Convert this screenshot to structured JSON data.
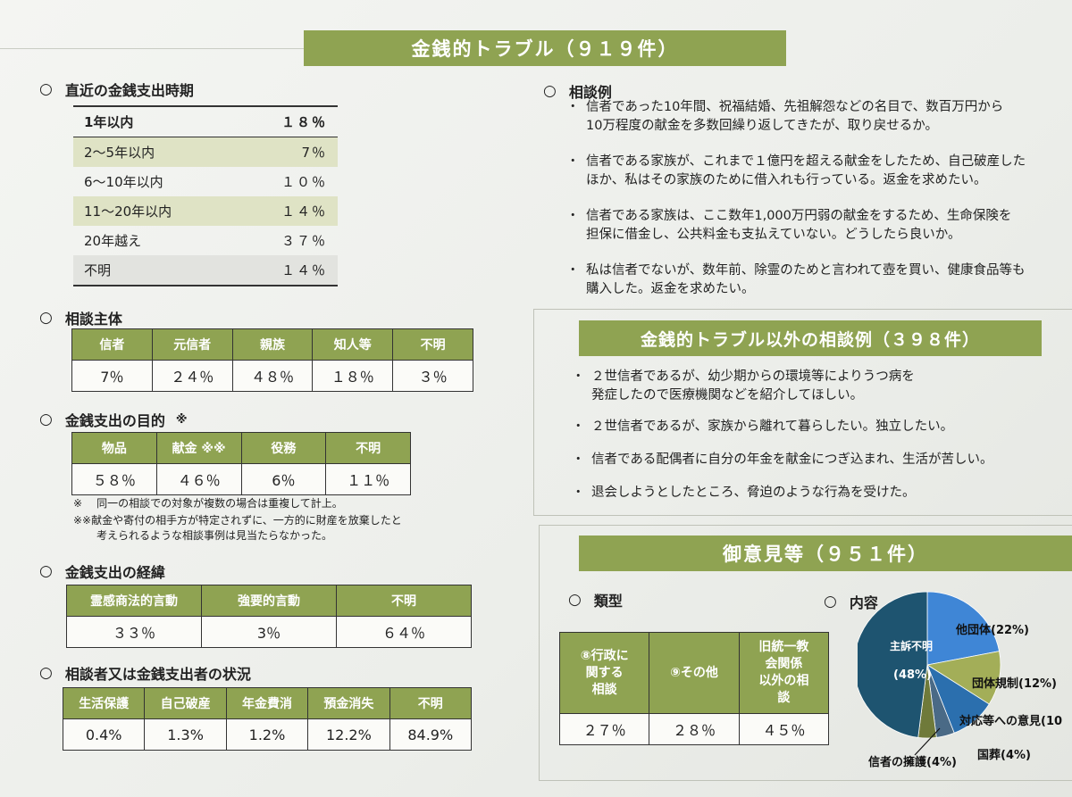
{
  "main_title": "金銭的トラブル（９１９件）",
  "recent": {
    "heading": "直近の金銭支出時期",
    "rows": [
      {
        "label": "1年以内",
        "value": "１８％"
      },
      {
        "label": "2～5年以内",
        "value": "7％"
      },
      {
        "label": "6～10年以内",
        "value": "１０％"
      },
      {
        "label": "11～20年以内",
        "value": "１４％"
      },
      {
        "label": "20年越え",
        "value": "３７％"
      },
      {
        "label": "不明",
        "value": "１４％"
      }
    ]
  },
  "subject": {
    "heading": "相談主体",
    "headers": [
      "信者",
      "元信者",
      "親族",
      "知人等",
      "不明"
    ],
    "values": [
      "7％",
      "２４％",
      "４８％",
      "１８％",
      "３％"
    ]
  },
  "purpose": {
    "heading": "金銭支出の目的",
    "mark": "※",
    "headers": [
      "物品",
      "献金 ※※",
      "役務",
      "不明"
    ],
    "values": [
      "５８％",
      "４６％",
      "6％",
      "１１％"
    ],
    "note1_mark": "※",
    "note1": "同一の相談での対象が複数の場合は重複して計上。",
    "note2_line1": "※※献金や寄付の相手方が特定されずに、一方的に財産を放棄したと",
    "note2_line2": "考えられるような相談事例は見当たらなかった。"
  },
  "process": {
    "heading": "金銭支出の経緯",
    "headers": [
      "霊感商法的言動",
      "強要的言動",
      "不明"
    ],
    "values": [
      "３３％",
      "3％",
      "６４％"
    ]
  },
  "status": {
    "heading": "相談者又は金銭支出者の状況",
    "headers": [
      "生活保護",
      "自己破産",
      "年金費消",
      "預金消失",
      "不明"
    ],
    "values": [
      "0.4%",
      "1.3%",
      "1.2%",
      "12.2%",
      "84.9%"
    ]
  },
  "examples": {
    "heading": "相談例",
    "items": [
      {
        "l1": "信者であった10年間、祝福結婚、先祖解怨などの名目で、数百万円から",
        "l2": "10万程度の献金を多数回繰り返してきたが、取り戻せるか。"
      },
      {
        "l1": "信者である家族が、これまで１億円を超える献金をしたため、自己破産した",
        "l2": "ほか、私はその家族のために借入れも行っている。返金を求めたい。"
      },
      {
        "l1": "信者である家族は、ここ数年1,000万円弱の献金をするため、生命保険を",
        "l2": "担保に借金し、公共料金も支払えていない。どうしたら良いか。"
      },
      {
        "l1": "私は信者でないが、数年前、除霊のためと言われて壺を買い、健康食品等も",
        "l2": "購入した。返金を求めたい。"
      }
    ]
  },
  "other": {
    "title": "金銭的トラブル以外の相談例（３９８件）",
    "items": [
      {
        "l1": "２世信者であるが、幼少期からの環境等によりうつ病を",
        "l2": "発症したので医療機関などを紹介してほしい。"
      },
      {
        "l1": "２世信者であるが、家族から離れて暮らしたい。独立したい。",
        "l2": ""
      },
      {
        "l1": "信者である配偶者に自分の年金を献金につぎ込まれ、生活が苦しい。",
        "l2": ""
      },
      {
        "l1": "退会しようとしたところ、脅迫のような行為を受けた。",
        "l2": ""
      }
    ]
  },
  "opinions": {
    "title": "御意見等（９５１件）",
    "type_heading": "類型",
    "type_headers": [
      {
        "l1": "⑧行政に",
        "l2": "関する",
        "l3": "相談"
      },
      {
        "l1": "⑨その他",
        "l2": "",
        "l3": ""
      },
      {
        "l1": "旧統一教",
        "l2": "会関係",
        "l3": "以外の相",
        "l4": "談"
      }
    ],
    "type_values": [
      "２７％",
      "２８％",
      "４５％"
    ],
    "content_heading": "内容"
  },
  "chart_data": {
    "type": "pie",
    "slices": [
      {
        "label": "主訴不明",
        "value": 48,
        "display": "(48%)",
        "color": "#1e5470"
      },
      {
        "label": "他団体(22%)",
        "value": 22,
        "color": "#3f86d6"
      },
      {
        "label": "団体規制(12%)",
        "value": 12,
        "color": "#a3ae58"
      },
      {
        "label": "対応等への意見(10",
        "value": 10,
        "color": "#2b6fae"
      },
      {
        "label": "国葬(4%)",
        "value": 4,
        "color": "#4a6a86"
      },
      {
        "label": "信者の擁護(4%)",
        "value": 4,
        "color": "#6f7a3a"
      }
    ]
  }
}
